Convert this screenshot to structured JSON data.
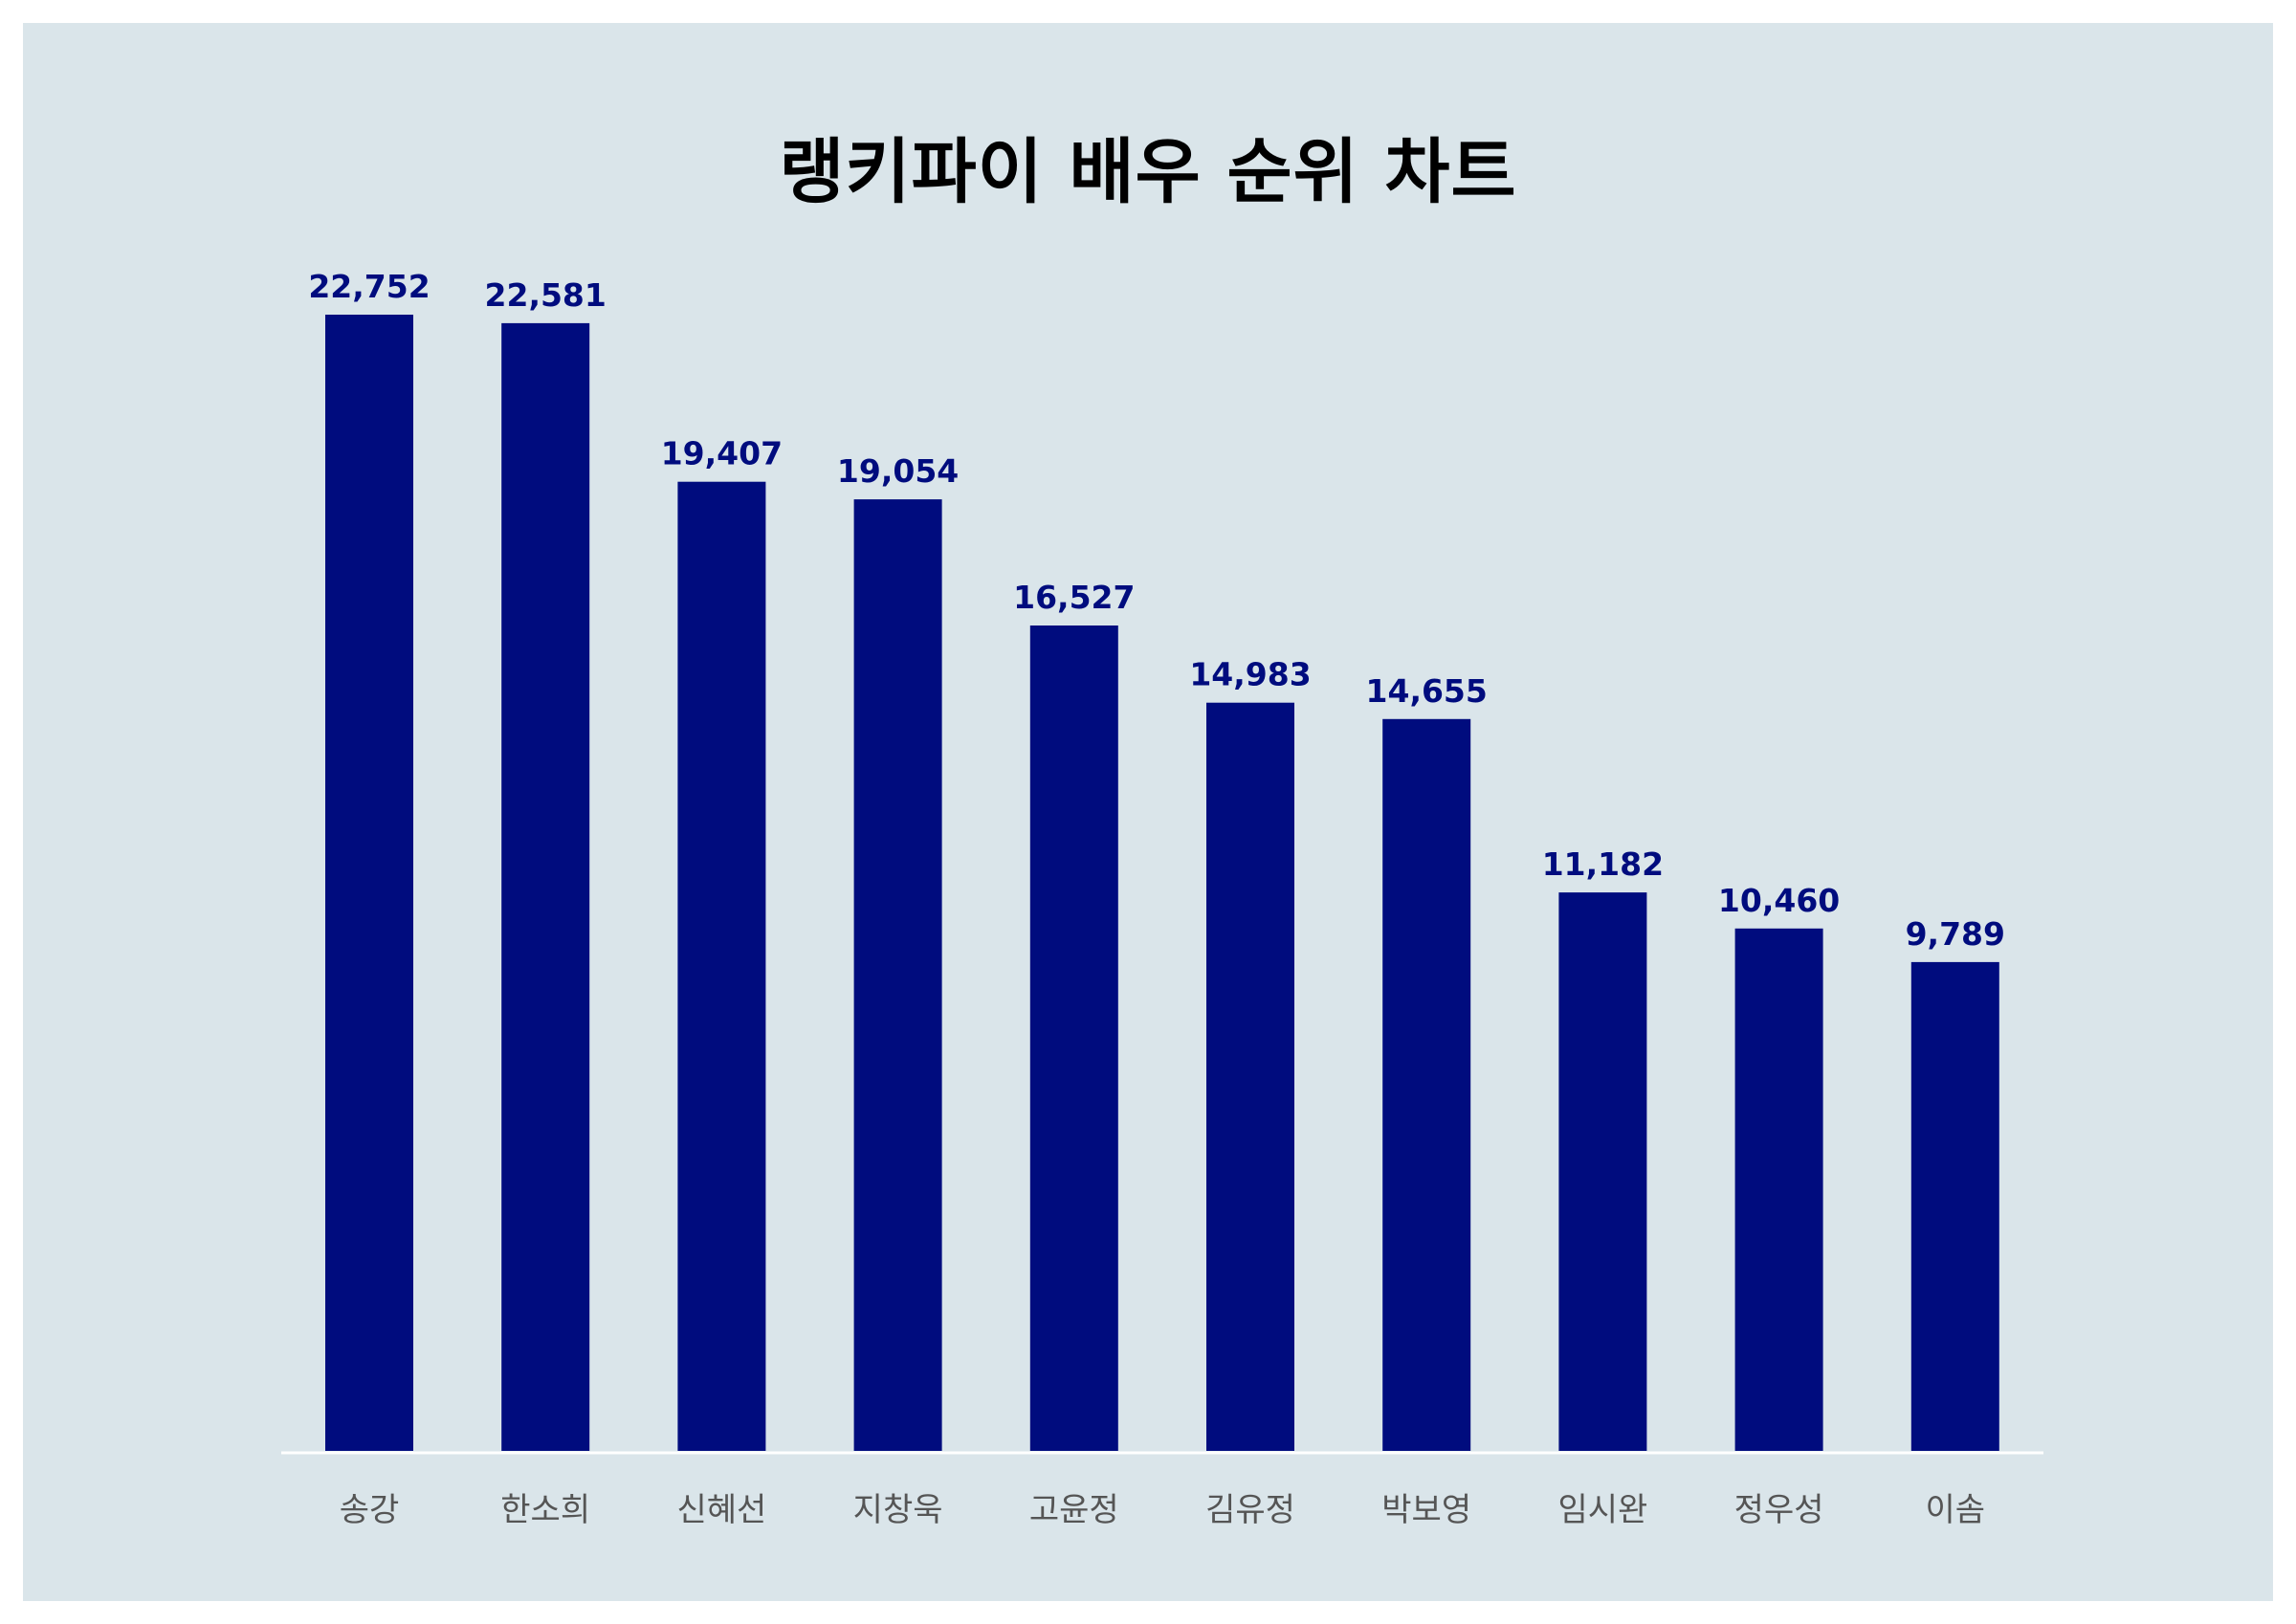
{
  "chart_data": {
    "type": "bar",
    "title": "랭키파이 배우 순위 차트",
    "categories": [
      "송강",
      "한소희",
      "신혜선",
      "지창욱",
      "고윤정",
      "김유정",
      "박보영",
      "임시완",
      "정우성",
      "이솜"
    ],
    "values": [
      22752,
      22581,
      19407,
      19054,
      16527,
      14983,
      14655,
      11182,
      10460,
      9789
    ],
    "value_labels": [
      "22,752",
      "22,581",
      "19,407",
      "19,054",
      "16,527",
      "14,983",
      "14,655",
      "11,182",
      "10,460",
      "9,789"
    ],
    "xlabel": "",
    "ylabel": "",
    "ylim": [
      0,
      22752
    ],
    "grid": false,
    "colors": {
      "bar": "#000c7e",
      "background": "#dae5ea",
      "value_label": "#000c7e",
      "tick_label": "#555555",
      "baseline": "#ffffff"
    }
  }
}
